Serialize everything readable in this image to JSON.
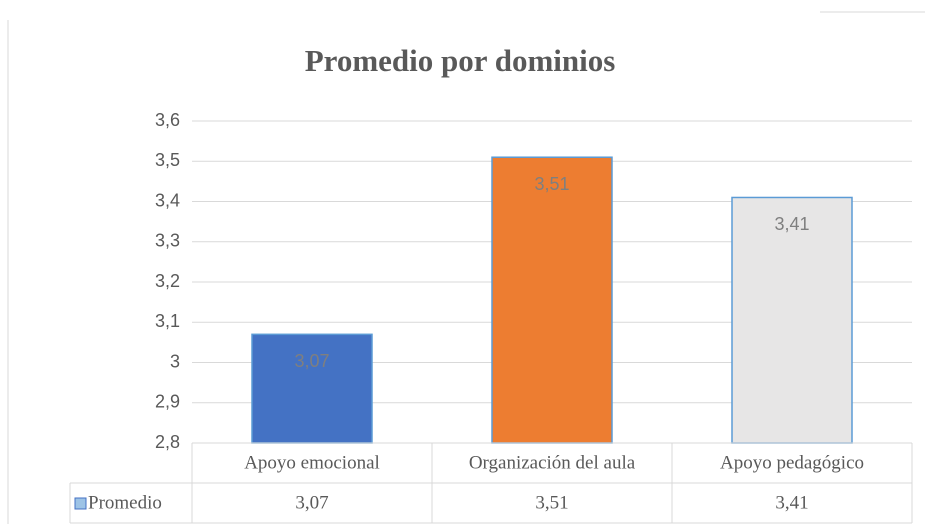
{
  "chart_data": {
    "type": "bar",
    "title": "Promedio por dominios",
    "categories": [
      "Apoyo emocional",
      "Organización del aula",
      "Apoyo pedagógico"
    ],
    "series": [
      {
        "name": "Promedio",
        "colors": [
          "#4472c4",
          "#ed7d31",
          "#e7e6e6"
        ],
        "values": [
          3.07,
          3.51,
          3.41
        ],
        "value_labels": [
          "3,07",
          "3,51",
          "3,41"
        ]
      }
    ],
    "ylim": [
      2.8,
      3.6
    ],
    "yticks": [
      {
        "value": 2.8,
        "label": "2,8"
      },
      {
        "value": 2.9,
        "label": "2,9"
      },
      3,
      {
        "value": 3.1,
        "label": "3,1"
      },
      {
        "value": 3.2,
        "label": "3,2"
      },
      {
        "value": 3.3,
        "label": "3,3"
      },
      {
        "value": 3.4,
        "label": "3,4"
      },
      {
        "value": 3.5,
        "label": "3,5"
      },
      {
        "value": 3.6,
        "label": "3,6"
      }
    ],
    "grid": true,
    "data_table": true
  }
}
